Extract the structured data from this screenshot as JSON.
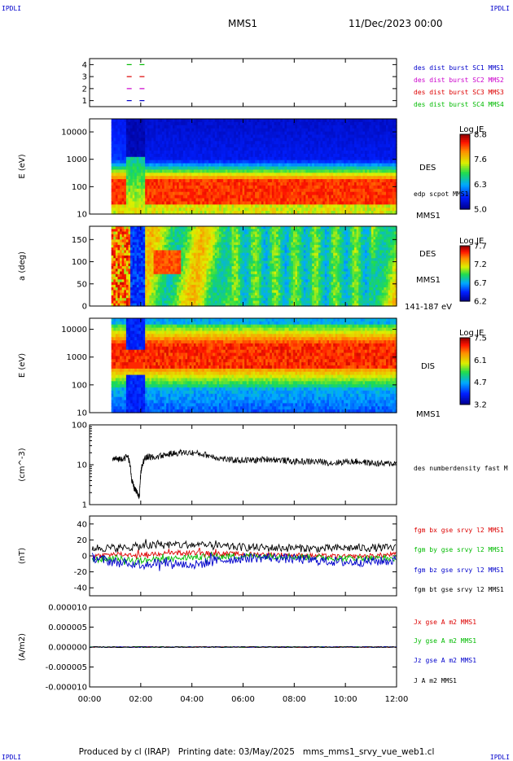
{
  "corner_labels": {
    "top_left": "IPDLI",
    "top_right": "IPDLI",
    "bottom_left": "IPDLI",
    "bottom_right": "IPDLI"
  },
  "header": {
    "spacecraft": "MMS1",
    "datetime": "11/Dec/2023 00:00"
  },
  "footer": {
    "produced_by": "Produced by cl (IRAP)",
    "printing_date": "Printing date: 03/May/2025",
    "file": "mms_mms1_srvy_vue_web1.cl"
  },
  "x_axis": {
    "ticks": [
      "00:00",
      "02:00",
      "04:00",
      "06:00",
      "08:00",
      "10:00",
      "12:00"
    ],
    "range_hours": [
      0,
      12
    ]
  },
  "colors": {
    "red": "#dd0000",
    "green": "#00bb00",
    "blue": "#0000cc",
    "magenta": "#cc00cc",
    "black": "#000000"
  },
  "chart_data": [
    {
      "type": "scatter",
      "panel": "burst-availability",
      "yticks": [
        "1",
        "2",
        "3",
        "4"
      ],
      "ylim": [
        0.5,
        4.5
      ],
      "series": [
        {
          "name": "des dist burst SC1 MMS1",
          "color": "#0000cc",
          "y": 1,
          "x_hours": [
            1.55,
            2.05
          ]
        },
        {
          "name": "des dist burst SC2 MMS2",
          "color": "#cc00cc",
          "y": 2,
          "x_hours": [
            1.55,
            2.05
          ]
        },
        {
          "name": "des dist burst SC3 MMS3",
          "color": "#dd0000",
          "y": 3,
          "x_hours": [
            1.55,
            2.05
          ]
        },
        {
          "name": "des dist burst SC4 MMS4",
          "color": "#00bb00",
          "y": 4,
          "x_hours": [
            1.55,
            2.05
          ]
        }
      ]
    },
    {
      "type": "heatmap",
      "panel": "des-energy",
      "ylabel": "E (eV)",
      "yscale": "log",
      "ylim": [
        10,
        30000
      ],
      "yticks": [
        "10",
        "100",
        "1000",
        "10000"
      ],
      "data_start_hours": 0.85,
      "side_labels": [
        "DES",
        "edp scpot MMS1",
        "MMS1"
      ],
      "colorbar": {
        "title": "Log JE",
        "min": 5.0,
        "max": 8.8,
        "ticks": [
          "8.8",
          "7.6",
          "6.3",
          "5.0"
        ]
      }
    },
    {
      "type": "heatmap",
      "panel": "des-pitch-angle",
      "ylabel": "a (deg)",
      "ylim": [
        0,
        180
      ],
      "yticks": [
        "0",
        "50",
        "100",
        "150"
      ],
      "data_start_hours": 0.85,
      "side_labels": [
        "DES",
        "MMS1",
        "141-187 eV"
      ],
      "colorbar": {
        "title": "Log JE",
        "min": 6.2,
        "max": 7.7,
        "ticks": [
          "7.7",
          "7.2",
          "6.7",
          "6.2"
        ]
      }
    },
    {
      "type": "heatmap",
      "panel": "dis-energy",
      "ylabel": "E (eV)",
      "yscale": "log",
      "ylim": [
        10,
        25000
      ],
      "yticks": [
        "10",
        "100",
        "1000",
        "10000"
      ],
      "data_start_hours": 0.85,
      "side_labels": [
        "DIS",
        "MMS1"
      ],
      "colorbar": {
        "title": "Log JE",
        "min": 3.2,
        "max": 7.5,
        "ticks": [
          "7.5",
          "6.1",
          "4.7",
          "3.2"
        ]
      }
    },
    {
      "type": "line",
      "panel": "density",
      "ylabel": "(cm^-3)",
      "yscale": "log",
      "ylim": [
        1,
        100
      ],
      "yticks": [
        "1",
        "10",
        "100"
      ],
      "series": [
        {
          "name": "des numberdensity fast M",
          "color": "#000000",
          "x_hours": [
            0.9,
            1.2,
            1.5,
            1.65,
            1.75,
            1.85,
            1.95,
            2.05,
            2.15,
            2.3,
            2.5,
            3.0,
            3.5,
            4.0,
            4.5,
            5.0,
            5.5,
            6.0,
            6.5,
            7.0,
            7.5,
            8.0,
            8.5,
            9.0,
            9.5,
            10.0,
            10.5,
            11.0,
            11.5,
            12.0
          ],
          "values": [
            14,
            14,
            16,
            4,
            2.5,
            2,
            1.5,
            10,
            14,
            16,
            15,
            18,
            20,
            20,
            18,
            15,
            13,
            13,
            13,
            14,
            13,
            12,
            12,
            12,
            11,
            12,
            12,
            11,
            10.5,
            11
          ]
        }
      ]
    },
    {
      "type": "line",
      "panel": "magnetic-field",
      "ylabel": "(nT)",
      "ylim": [
        -50,
        50
      ],
      "yticks": [
        "-40",
        "-20",
        "0",
        "20",
        "40"
      ],
      "series": [
        {
          "name": "fgm bx gse srvy l2 MMS1",
          "color": "#dd0000",
          "x_hours": [
            0.1,
            1,
            2,
            3,
            4,
            5,
            6,
            7,
            8,
            9,
            10,
            11,
            12
          ],
          "values": [
            0,
            2,
            1,
            3,
            4,
            3,
            2,
            2,
            1,
            0,
            -1,
            0,
            2
          ]
        },
        {
          "name": "fgm by gse srvy l2 MMS1",
          "color": "#00bb00",
          "x_hours": [
            0.1,
            1,
            2,
            3,
            4,
            5,
            6,
            7,
            8,
            9,
            10,
            11,
            12
          ],
          "values": [
            -5,
            -3,
            -6,
            -4,
            -2,
            -1,
            0,
            0,
            -1,
            -2,
            -3,
            -3,
            -3
          ]
        },
        {
          "name": "fgm bz gse srvy l2 MMS1",
          "color": "#0000cc",
          "x_hours": [
            0.1,
            1,
            2,
            3,
            4,
            5,
            6,
            7,
            8,
            9,
            10,
            11,
            12
          ],
          "values": [
            -2,
            -8,
            -10,
            -8,
            -12,
            -6,
            -3,
            -2,
            -4,
            -6,
            -8,
            -7,
            -6
          ]
        },
        {
          "name": "fgm bt gse srvy l2 MMS1",
          "color": "#000000",
          "x_hours": [
            0.1,
            1,
            2,
            3,
            4,
            5,
            6,
            7,
            8,
            9,
            10,
            11,
            12
          ],
          "values": [
            10,
            10,
            12,
            14,
            14,
            12,
            11,
            10,
            10,
            9,
            10,
            10,
            10
          ]
        }
      ]
    },
    {
      "type": "line",
      "panel": "current-density",
      "ylabel": "(A/m2)",
      "ylim": [
        -1e-05,
        1e-05
      ],
      "yticks": [
        "-0.000010",
        "-0.000005",
        "0.000000",
        "0.000005",
        "0.000010"
      ],
      "series": [
        {
          "name": "Jx gse A m2 MMS1",
          "color": "#dd0000",
          "x_hours": [
            0,
            12
          ],
          "values": [
            0,
            0
          ]
        },
        {
          "name": "Jy gse A m2 MMS1",
          "color": "#00bb00",
          "x_hours": [
            0,
            12
          ],
          "values": [
            0,
            0
          ]
        },
        {
          "name": "Jz gse A m2 MMS1",
          "color": "#0000cc",
          "x_hours": [
            0,
            12
          ],
          "values": [
            0,
            0
          ]
        },
        {
          "name": "J A m2 MMS1",
          "color": "#000000",
          "x_hours": [
            0,
            12
          ],
          "values": [
            0,
            0
          ]
        }
      ]
    }
  ]
}
